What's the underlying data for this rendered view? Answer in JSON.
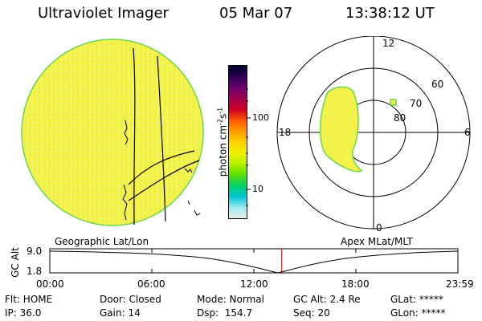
{
  "header": {
    "title": "Ultraviolet Imager",
    "date": "05 Mar 07",
    "time": "13:38:12 UT"
  },
  "geo_panel": {
    "label": "Geographic Lat/Lon"
  },
  "apex_panel": {
    "label": "Apex MLat/MLT",
    "mlt_labels": {
      "top": "12",
      "right": "6",
      "bottom": "0",
      "left": "18"
    },
    "lat_labels": [
      "60",
      "70",
      "80"
    ]
  },
  "colorbar": {
    "unit_label": "photon cm",
    "unit_sup1": "-2",
    "unit_mid": "s",
    "unit_sup2": "-1",
    "tick_labels": [
      "100",
      "10"
    ],
    "colors": [
      "#000033",
      "#2a0050",
      "#6a0070",
      "#a00050",
      "#d00020",
      "#ff5a00",
      "#ff9a00",
      "#ffd000",
      "#f0f000",
      "#b8f000",
      "#60e000",
      "#00d070",
      "#00c8d8",
      "#a0e8f0",
      "#ececec"
    ]
  },
  "altitude_strip": {
    "ylabel": "GC Alt",
    "ymax_label": "9.0",
    "ymin_label": "1.8",
    "xticks": [
      "00:00",
      "06:00",
      "12:00",
      "18:00",
      "23:59"
    ],
    "current_time_hours": 13.64
  },
  "footer": {
    "flt": "Flt: HOME",
    "ip": "IP: 36.0",
    "door": "Door: Closed",
    "gain": "Gain: 14",
    "mode": "Mode: Normal",
    "dsp": "Dsp:  154.7",
    "gcalt": "GC Alt: 2.4 Re",
    "seq": "Seq: 20",
    "glat": "GLat: *****",
    "glon": "GLon: *****"
  }
}
